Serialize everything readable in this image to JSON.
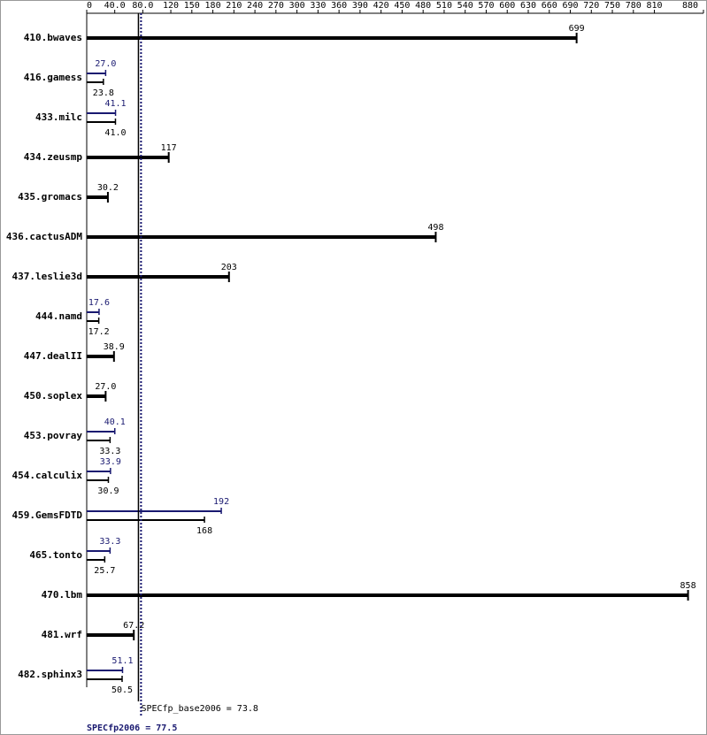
{
  "chart_data": {
    "type": "bar",
    "orientation": "horizontal",
    "categories": [
      "410.bwaves",
      "416.gamess",
      "433.milc",
      "434.zeusmp",
      "435.gromacs",
      "436.cactusADM",
      "437.leslie3d",
      "444.namd",
      "447.dealII",
      "450.soplex",
      "453.povray",
      "454.calculix",
      "459.GemsFDTD",
      "465.tonto",
      "470.lbm",
      "481.wrf",
      "482.sphinx3"
    ],
    "series": [
      {
        "color": "#000000",
        "values": [
          699,
          23.8,
          41.0,
          117,
          30.2,
          498,
          203,
          17.2,
          38.9,
          27.0,
          33.3,
          30.9,
          168,
          25.7,
          858,
          67.2,
          50.5
        ],
        "value_labels": [
          "699",
          "23.8",
          "41.0",
          "117",
          "30.2",
          "498",
          "203",
          "17.2",
          "38.9",
          "27.0",
          "33.3",
          "30.9",
          "168",
          "25.7",
          "858",
          "67.2",
          "50.5"
        ]
      },
      {
        "color": "#191970",
        "values": [
          null,
          27.0,
          41.1,
          null,
          null,
          null,
          null,
          17.6,
          null,
          null,
          40.1,
          33.9,
          192,
          33.3,
          null,
          null,
          51.1
        ],
        "value_labels": [
          null,
          "27.0",
          "41.1",
          null,
          null,
          null,
          null,
          "17.6",
          null,
          null,
          "40.1",
          "33.9",
          "192",
          "33.3",
          null,
          null,
          "51.1"
        ]
      }
    ],
    "xlim": [
      0,
      880
    ],
    "xticks": [
      0,
      {
        "value": 40,
        "label": "40.0"
      },
      {
        "value": 80,
        "label": "80.0"
      },
      120,
      150,
      180,
      210,
      240,
      270,
      300,
      330,
      360,
      390,
      420,
      450,
      480,
      510,
      540,
      570,
      600,
      630,
      660,
      690,
      720,
      750,
      780,
      810,
      880
    ],
    "reference_lines": [
      {
        "value": 73.8,
        "label": "SPECfp_base2006 = 73.8",
        "color": "#000000",
        "style": "solid"
      },
      {
        "value": 77.5,
        "label": "SPECfp2006 = 77.5",
        "color": "#191970",
        "style": "dotted"
      }
    ]
  }
}
